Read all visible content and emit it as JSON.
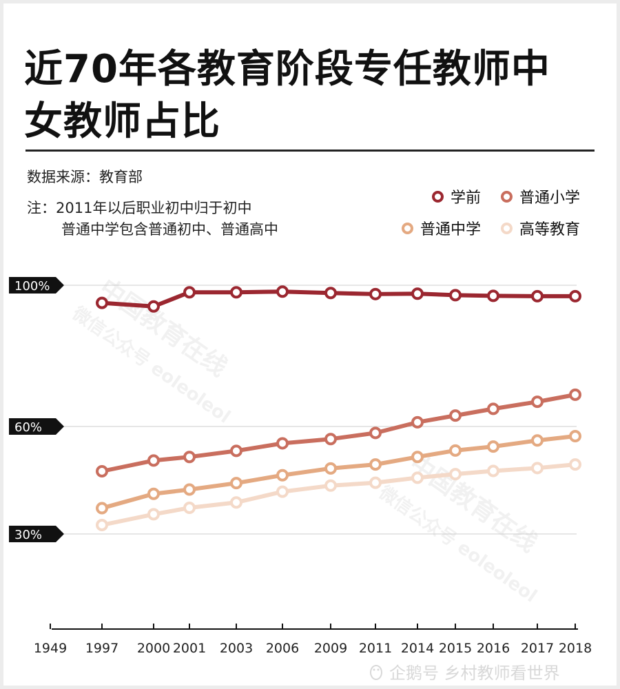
{
  "title": "近70年各教育阶段专任教师中女教师占比",
  "source": "数据来源：教育部",
  "note_line1": "注：2011年以后职业初中归于初中",
  "note_line2": "普通中学包含普通初中、普通高中",
  "watermark1": "中国教育在线",
  "watermark2": "微信公众号 eoleoleol",
  "footer": "企鹅号 乡村教师看世界",
  "chart_data": {
    "type": "line",
    "x": [
      "1949",
      "1997",
      "2000",
      "2001",
      "2003",
      "2006",
      "2009",
      "2011",
      "2014",
      "2015",
      "2016",
      "2017",
      "2018"
    ],
    "y_ticks": [
      "100%",
      "60%",
      "30%"
    ],
    "ylim": [
      0,
      100
    ],
    "series": [
      {
        "name": "学前",
        "color": "#9b2730",
        "values": [
          null,
          95,
          94,
          98,
          98,
          98.2,
          97.8,
          97.5,
          97.6,
          97.2,
          97,
          96.9,
          96.9
        ]
      },
      {
        "name": "普通小学",
        "color": "#c96e5e",
        "values": [
          null,
          47.5,
          50.5,
          51.5,
          53.2,
          55.3,
          56.5,
          58.2,
          61.2,
          63.1,
          65,
          67,
          69
        ]
      },
      {
        "name": "普通中学",
        "color": "#e4a981",
        "values": [
          null,
          37.2,
          41.2,
          42.4,
          44.2,
          46.4,
          48.3,
          49.4,
          51.5,
          53.3,
          54.4,
          56.1,
          57.3
        ]
      },
      {
        "name": "高等教育",
        "color": "#f4d9c8",
        "values": [
          null,
          32.5,
          35.5,
          37.3,
          38.8,
          41.8,
          43.5,
          44.3,
          45.7,
          46.7,
          47.6,
          48.4,
          49.4
        ]
      }
    ]
  }
}
